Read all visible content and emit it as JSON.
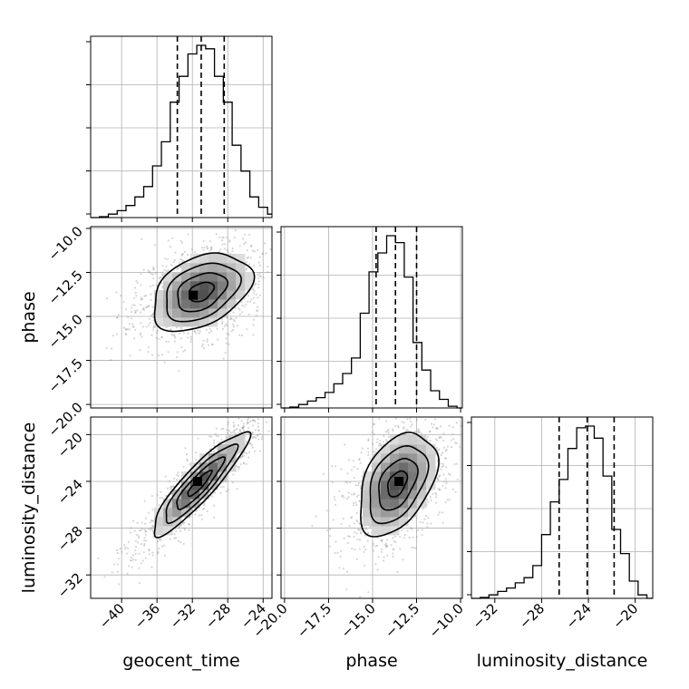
{
  "chart_data": {
    "type": "corner",
    "parameters": [
      "geocent_time",
      "phase",
      "luminosity_distance"
    ],
    "axis_labels": {
      "x": [
        "geocent_time",
        "phase",
        "luminosity_distance"
      ],
      "y": [
        "phase",
        "luminosity_distance"
      ]
    },
    "ranges": {
      "geocent_time": [
        -43.5,
        -23.0
      ],
      "phase": [
        -20.2,
        -9.9
      ],
      "luminosity_distance": [
        -34.0,
        -18.5
      ]
    },
    "ticks": {
      "geocent_time": [
        -40,
        -36,
        -32,
        -28,
        -24
      ],
      "phase": [
        -20.0,
        -17.5,
        -15.0,
        -12.5,
        -10.0
      ],
      "luminosity_distance": [
        -32,
        -28,
        -24,
        -20
      ]
    },
    "tick_labels": {
      "geocent_time": [
        "−40",
        "−36",
        "−32",
        "−28",
        "−24"
      ],
      "phase": [
        "−20.0",
        "−17.5",
        "−15.0",
        "−12.5",
        "−10.0"
      ],
      "luminosity_distance": [
        "−32",
        "−28",
        "−24",
        "−20"
      ]
    },
    "quantiles": {
      "geocent_time": [
        -33.7,
        -31.0,
        -28.4
      ],
      "phase": [
        -14.8,
        -13.7,
        -12.5
      ],
      "luminosity_distance": [
        -26.5,
        -24.1,
        -21.8
      ]
    },
    "histograms": {
      "geocent_time": {
        "edges": [
          -43.5,
          -42.5,
          -41.5,
          -40.5,
          -39.5,
          -38.5,
          -37.5,
          -36.5,
          -35.5,
          -34.5,
          -33.5,
          -32.5,
          -31.5,
          -30.5,
          -29.5,
          -28.5,
          -27.5,
          -26.5,
          -25.5,
          -24.5,
          -23.5,
          -23.0
        ],
        "counts": [
          0.0,
          0.005,
          0.02,
          0.04,
          0.07,
          0.12,
          0.18,
          0.3,
          0.44,
          0.67,
          0.82,
          0.95,
          1.0,
          0.98,
          0.82,
          0.67,
          0.42,
          0.27,
          0.12,
          0.06,
          0.02
        ]
      },
      "phase": {
        "edges": [
          -20.2,
          -19.7,
          -19.2,
          -18.7,
          -18.2,
          -17.7,
          -17.2,
          -16.7,
          -16.2,
          -15.7,
          -15.2,
          -14.7,
          -14.2,
          -13.7,
          -13.2,
          -12.7,
          -12.2,
          -11.7,
          -11.2,
          -10.7,
          -10.2,
          -9.9
        ],
        "counts": [
          0.0,
          0.005,
          0.02,
          0.04,
          0.06,
          0.09,
          0.14,
          0.2,
          0.29,
          0.55,
          0.79,
          0.9,
          1.0,
          0.96,
          0.76,
          0.38,
          0.22,
          0.1,
          0.05,
          0.01,
          0.0
        ]
      },
      "luminosity_distance": {
        "edges": [
          -34.0,
          -33.25,
          -32.5,
          -31.75,
          -31.0,
          -30.25,
          -29.5,
          -28.75,
          -28.0,
          -27.25,
          -26.5,
          -25.75,
          -25.0,
          -24.25,
          -23.5,
          -22.75,
          -22.0,
          -21.25,
          -20.5,
          -19.75,
          -19.0,
          -18.5
        ],
        "counts": [
          0.0,
          0.005,
          0.02,
          0.04,
          0.06,
          0.09,
          0.12,
          0.19,
          0.37,
          0.56,
          0.69,
          0.87,
          0.99,
          1.0,
          0.93,
          0.71,
          0.4,
          0.26,
          0.1,
          0.02,
          0.0
        ]
      }
    },
    "pairs": [
      {
        "x": "geocent_time",
        "y": "phase",
        "mean": [
          -31.0,
          -13.6
        ],
        "sd": [
          2.8,
          1.1
        ],
        "rho": 0.38,
        "peak": [
          -31.9,
          -13.8
        ]
      },
      {
        "x": "geocent_time",
        "y": "luminosity_distance",
        "mean": [
          -31.2,
          -24.2
        ],
        "sd": [
          2.7,
          2.2
        ],
        "rho": 0.9,
        "peak": [
          -31.4,
          -24.0
        ]
      },
      {
        "x": "phase",
        "y": "luminosity_distance",
        "mean": [
          -13.6,
          -24.2
        ],
        "sd": [
          1.1,
          2.2
        ],
        "rho": 0.42,
        "peak": [
          -13.5,
          -24.0
        ]
      }
    ],
    "contour_levels": [
      0.5,
      1.0,
      1.5,
      2.0
    ],
    "histogram_style": "step",
    "quantile_line_style": "dashed",
    "grid": true
  }
}
